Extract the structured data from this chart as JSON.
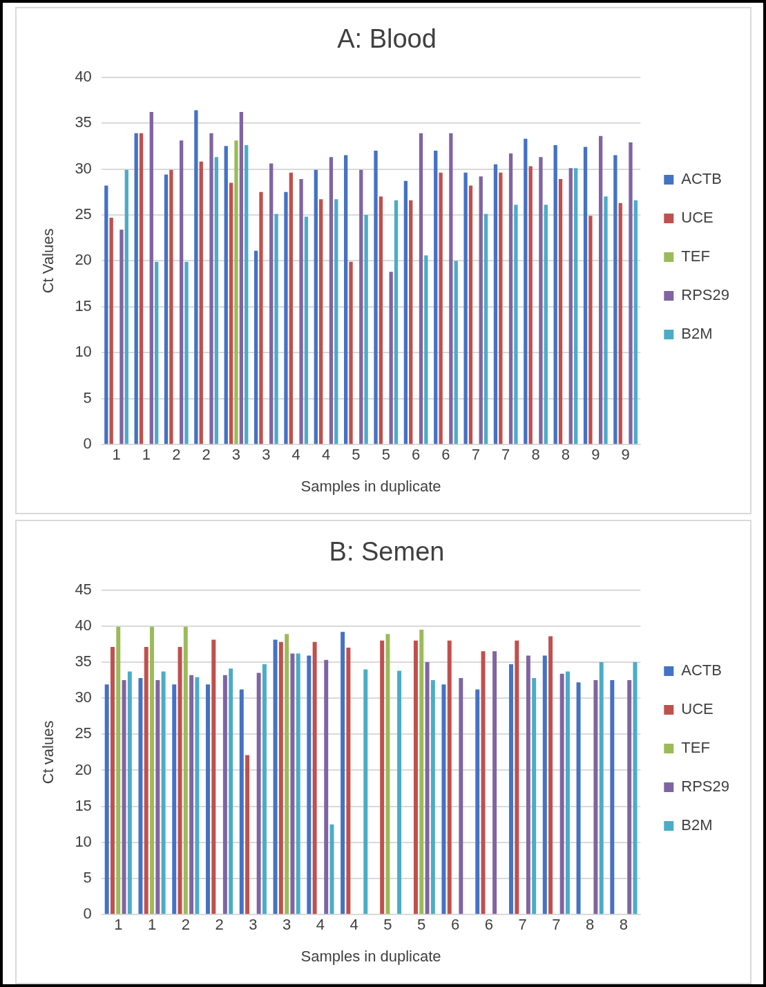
{
  "chart_data": [
    {
      "type": "bar",
      "title": "A: Blood",
      "xlabel": "Samples in duplicate",
      "ylabel": "Ct Values",
      "categories": [
        "1",
        "1",
        "2",
        "2",
        "3",
        "3",
        "4",
        "4",
        "5",
        "5",
        "6",
        "6",
        "7",
        "7",
        "8",
        "8",
        "9",
        "9"
      ],
      "series": [
        {
          "name": "ACTB",
          "color": "#4472c4",
          "values": [
            28.2,
            33.9,
            29.4,
            36.4,
            32.5,
            21.1,
            27.5,
            29.9,
            31.5,
            32.0,
            28.7,
            32.0,
            29.6,
            30.5,
            33.3,
            32.6,
            32.4,
            31.5
          ]
        },
        {
          "name": "UCE",
          "color": "#c0504d",
          "values": [
            24.7,
            33.9,
            29.9,
            30.8,
            28.5,
            27.5,
            29.6,
            26.7,
            19.9,
            27.0,
            26.6,
            29.6,
            28.2,
            29.6,
            30.3,
            28.9,
            24.9,
            26.3
          ]
        },
        {
          "name": "TEF",
          "color": "#9bbb59",
          "values": [
            null,
            null,
            null,
            null,
            33.1,
            null,
            null,
            null,
            null,
            null,
            null,
            null,
            null,
            null,
            null,
            null,
            null,
            null
          ]
        },
        {
          "name": "RPS29",
          "color": "#8064a2",
          "values": [
            23.4,
            36.2,
            33.1,
            33.9,
            36.2,
            30.6,
            28.9,
            31.3,
            29.9,
            18.8,
            33.9,
            33.9,
            29.2,
            31.7,
            31.3,
            30.1,
            33.6,
            32.9
          ]
        },
        {
          "name": "B2M",
          "color": "#4bacc6",
          "values": [
            29.9,
            19.9,
            19.9,
            31.3,
            32.6,
            25.1,
            24.8,
            26.7,
            25.0,
            26.6,
            20.6,
            20.0,
            25.1,
            26.1,
            26.1,
            30.1,
            27.0,
            26.6
          ]
        }
      ],
      "ylim": [
        0,
        40
      ],
      "yticks": [
        0,
        5,
        10,
        15,
        20,
        25,
        30,
        35,
        40
      ],
      "grid": "y",
      "legend": "right"
    },
    {
      "type": "bar",
      "title": "B: Semen",
      "xlabel": "Samples in duplicate",
      "ylabel": "Ct values",
      "categories": [
        "1",
        "1",
        "2",
        "2",
        "3",
        "3",
        "4",
        "4",
        "5",
        "5",
        "6",
        "6",
        "7",
        "7",
        "8",
        "8"
      ],
      "series": [
        {
          "name": "ACTB",
          "color": "#4472c4",
          "values": [
            31.9,
            32.8,
            31.9,
            31.9,
            31.2,
            38.1,
            35.9,
            39.2,
            null,
            null,
            31.9,
            31.2,
            34.7,
            35.9,
            32.2,
            32.5
          ]
        },
        {
          "name": "UCE",
          "color": "#c0504d",
          "values": [
            37.1,
            37.1,
            37.1,
            38.1,
            22.1,
            37.8,
            37.8,
            37.0,
            38.0,
            38.0,
            38.0,
            36.5,
            38.0,
            38.6,
            null,
            null
          ]
        },
        {
          "name": "TEF",
          "color": "#9bbb59",
          "values": [
            39.9,
            39.9,
            39.9,
            null,
            null,
            38.9,
            null,
            null,
            38.9,
            39.5,
            null,
            null,
            null,
            null,
            null,
            null
          ]
        },
        {
          "name": "RPS29",
          "color": "#8064a2",
          "values": [
            32.5,
            32.5,
            33.2,
            33.2,
            33.5,
            36.2,
            35.3,
            null,
            null,
            35.0,
            32.8,
            36.5,
            35.9,
            33.4,
            32.5,
            32.5
          ]
        },
        {
          "name": "B2M",
          "color": "#4bacc6",
          "values": [
            33.7,
            33.7,
            32.9,
            34.1,
            34.7,
            36.2,
            12.5,
            34.0,
            33.8,
            32.5,
            null,
            null,
            32.8,
            33.7,
            35.0,
            35.0
          ]
        }
      ],
      "ylim": [
        0,
        45
      ],
      "yticks": [
        0,
        5,
        10,
        15,
        20,
        25,
        30,
        35,
        40,
        45
      ],
      "grid": "y",
      "legend": "right"
    }
  ]
}
